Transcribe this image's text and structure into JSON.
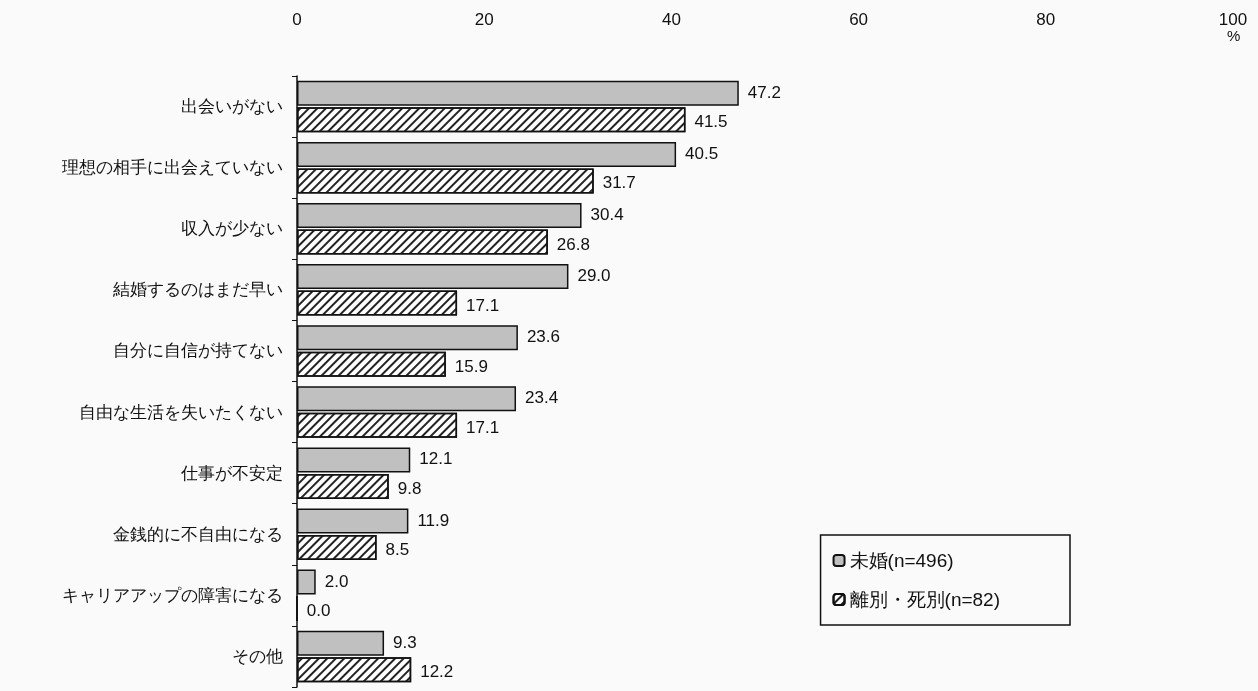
{
  "chart_data": {
    "type": "bar",
    "orientation": "horizontal",
    "xlabel": "%",
    "categories": [
      "出会いがない",
      "理想の相手に出会えていない",
      "収入が少ない",
      "結婚するのはまだ早い",
      "自分に自信が持てない",
      "自由な生活を失いたくない",
      "仕事が不安定",
      "金銭的に不自由になる",
      "キャリアアップの障害になる",
      "その他"
    ],
    "series": [
      {
        "name": "未婚(n=496)",
        "color": "#c0c0c0",
        "values": [
          47.2,
          40.5,
          30.4,
          29.0,
          23.6,
          23.4,
          12.1,
          11.9,
          2.0,
          9.3
        ],
        "value_labels": [
          "47.2",
          "40.5",
          "30.4",
          "29.0",
          "23.6",
          "23.4",
          "12.1",
          "11.9",
          "2.0",
          "9.3"
        ]
      },
      {
        "name": "離別・死別(n=82)",
        "color": "#ffffff",
        "values": [
          41.5,
          31.7,
          26.8,
          17.1,
          15.9,
          17.1,
          9.8,
          8.5,
          0.0,
          12.2
        ],
        "value_labels": [
          "41.5",
          "31.7",
          "26.8",
          "17.1",
          "15.9",
          "17.1",
          "9.8",
          "8.5",
          "0.0",
          "12.2"
        ]
      }
    ],
    "xlim": [
      0,
      100
    ],
    "xticks": [
      0,
      20,
      40,
      60,
      80,
      100
    ],
    "legend": "bottom right"
  }
}
